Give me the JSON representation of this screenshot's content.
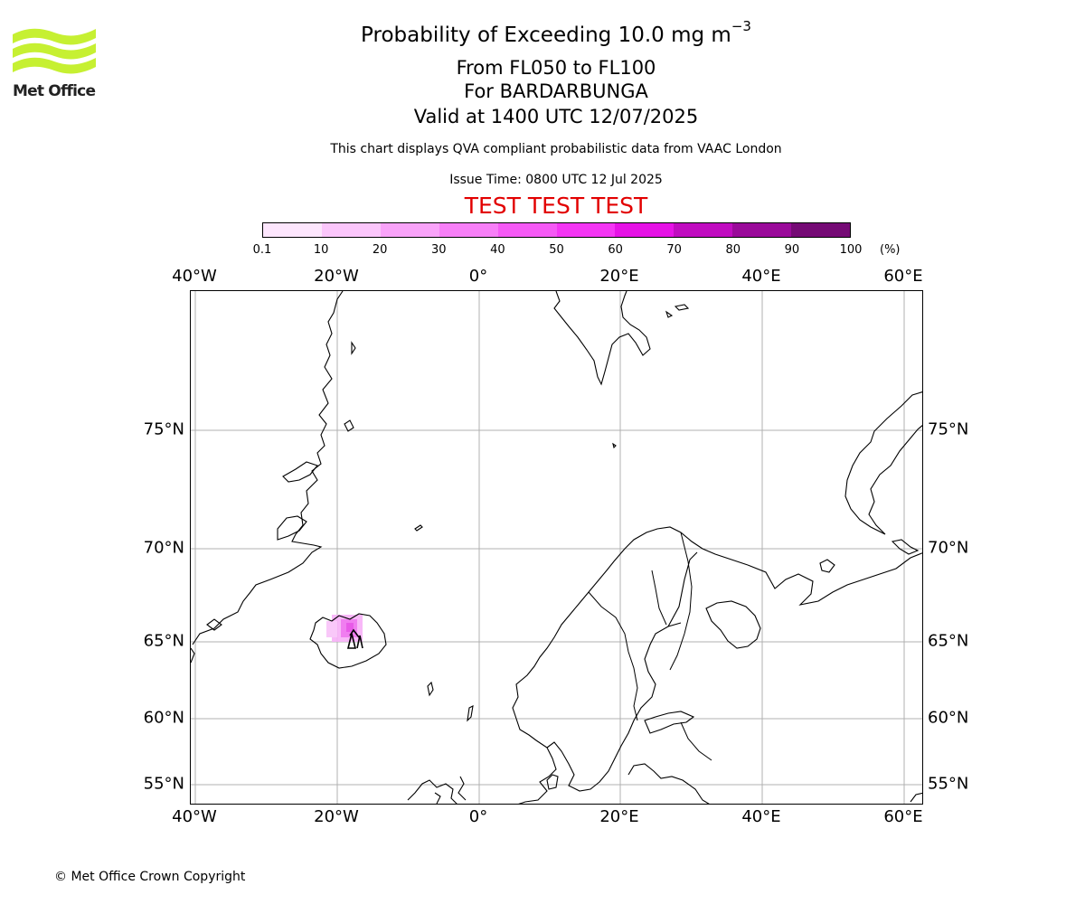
{
  "logo": {
    "text": "Met Office",
    "icon": "met-office-waves-logo",
    "color": "#c6f032"
  },
  "header": {
    "title_main": "Probability of Exceeding 10.0 mg m",
    "title_exponent": "−3",
    "level_range": "From FL050 to FL100",
    "volcano": "For BARDARBUNGA",
    "valid_time": "Valid at 1400 UTC 12/07/2025",
    "note": "This chart displays QVA compliant probabilistic data from VAAC London",
    "issue_time": "Issue Time: 0800 UTC 12 Jul 2025",
    "test_banner": "TEST TEST TEST",
    "test_color": "#e20000"
  },
  "colorbar": {
    "ticks": [
      "0.1",
      "10",
      "20",
      "30",
      "40",
      "50",
      "60",
      "70",
      "80",
      "90",
      "100"
    ],
    "unit": "(%)",
    "colors": [
      "#fde6fd",
      "#fbc6fb",
      "#f9a3f9",
      "#f77ff7",
      "#f55af5",
      "#f436f4",
      "#e612e6",
      "#c00cc0",
      "#9a0a9a",
      "#750a75"
    ]
  },
  "map": {
    "lon_labels": [
      "40°W",
      "20°W",
      "0°",
      "20°E",
      "40°E",
      "60°E"
    ],
    "lat_labels": [
      "75°N",
      "70°N",
      "65°N",
      "60°N",
      "55°N"
    ],
    "volcano_marker": "triangle-marker"
  },
  "footer": {
    "copyright": "© Met Office Crown Copyright"
  }
}
